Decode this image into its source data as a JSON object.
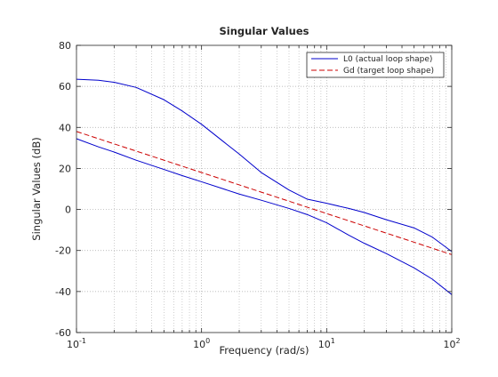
{
  "chart_data": {
    "type": "line",
    "title": "Singular Values",
    "xlabel": "Frequency (rad/s)",
    "ylabel": "Singular Values (dB)",
    "x_scale": "log",
    "xlim": [
      0.1,
      100
    ],
    "ylim": [
      -60,
      80
    ],
    "grid": true,
    "legend_position": "top-right",
    "x_tick_labels": [
      {
        "value": 0.1,
        "base": "10",
        "exp": "-1"
      },
      {
        "value": 1,
        "base": "10",
        "exp": "0"
      },
      {
        "value": 10,
        "base": "10",
        "exp": "1"
      },
      {
        "value": 100,
        "base": "10",
        "exp": "2"
      }
    ],
    "y_ticks": [
      -60,
      -40,
      -20,
      0,
      20,
      40,
      60,
      80
    ],
    "series": [
      {
        "name": "L0 (actual loop shape)",
        "color": "#0000cc",
        "style": "solid",
        "in_legend": true,
        "x": [
          0.1,
          0.15,
          0.2,
          0.3,
          0.5,
          0.7,
          1,
          1.5,
          2,
          3,
          5,
          7,
          10,
          15,
          20,
          30,
          50,
          70,
          100
        ],
        "y": [
          63.5,
          63,
          62,
          59.5,
          53.5,
          48,
          41.5,
          33,
          27,
          18,
          9.5,
          5,
          3,
          0.5,
          -1.5,
          -5,
          -9,
          -13.5,
          -20.5
        ]
      },
      {
        "name": "",
        "color": "#0000cc",
        "style": "solid",
        "in_legend": false,
        "x": [
          0.1,
          0.15,
          0.2,
          0.3,
          0.5,
          0.7,
          1,
          1.5,
          2,
          3,
          5,
          7,
          10,
          15,
          20,
          30,
          50,
          70,
          100
        ],
        "y": [
          34.5,
          30.5,
          28,
          24,
          19.5,
          16.5,
          13.5,
          10,
          7.5,
          4.5,
          0.5,
          -2.5,
          -6.5,
          -12.5,
          -16.5,
          -21.5,
          -28.5,
          -34,
          -41.5
        ]
      },
      {
        "name": "Gd (target loop shape)",
        "color": "#cc0000",
        "style": "dashed",
        "in_legend": true,
        "x": [
          0.1,
          100
        ],
        "y": [
          38,
          -22
        ]
      }
    ]
  }
}
